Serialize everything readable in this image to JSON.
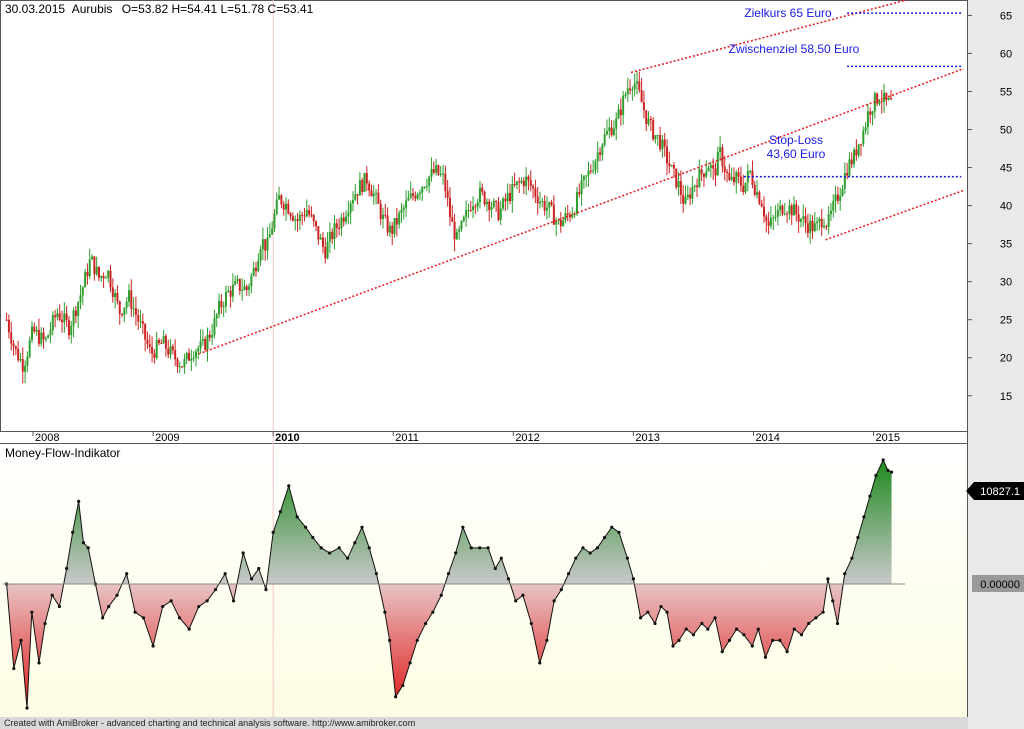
{
  "header": {
    "date": "30.03.2015",
    "symbol": "Aurubis",
    "ohlc": "O=53.82  H=54.41  L=51.78  C=53.41"
  },
  "indicator_title": "Money-Flow-Indikator",
  "footer": "Created with AmiBroker - advanced charting and technical analysis software. http://www.amibroker.com",
  "colors": {
    "up_candle": "#2e9e2e",
    "down_candle": "#cc2222",
    "channel": "#e8242a",
    "target_lines": "#1a1ae6",
    "annotation_text": "#1a1ae6",
    "mfi_positive": "#2e8b2e",
    "mfi_negative": "#dd2222"
  },
  "chart_data": [
    {
      "type": "candlestick",
      "title": "30.03.2015 Aurubis",
      "x_tick_labels": [
        "2008",
        "2009",
        "2010",
        "2011",
        "2012",
        "2013",
        "2014",
        "2015"
      ],
      "x_tick_years": [
        2008,
        2009,
        2010,
        2011,
        2012,
        2013,
        2014,
        2015
      ],
      "y_tick_labels": [
        "15",
        "20",
        "25",
        "30",
        "35",
        "40",
        "45",
        "50",
        "55",
        "60",
        "65"
      ],
      "ylim": [
        10.5,
        66.5
      ],
      "xlim": [
        2007.75,
        2015.77
      ],
      "last_bar": {
        "open": 53.82,
        "high": 54.41,
        "low": 51.78,
        "close": 53.41
      },
      "price_path": [
        [
          2007.78,
          25.0
        ],
        [
          2007.85,
          21.0
        ],
        [
          2007.92,
          19.0
        ],
        [
          2008.0,
          23.5
        ],
        [
          2008.1,
          22.0
        ],
        [
          2008.2,
          26.0
        ],
        [
          2008.3,
          24.0
        ],
        [
          2008.4,
          28.5
        ],
        [
          2008.48,
          33.0
        ],
        [
          2008.55,
          30.5
        ],
        [
          2008.62,
          31.5
        ],
        [
          2008.72,
          26.0
        ],
        [
          2008.8,
          28.0
        ],
        [
          2008.9,
          24.0
        ],
        [
          2008.98,
          20.5
        ],
        [
          2009.08,
          22.0
        ],
        [
          2009.15,
          20.5
        ],
        [
          2009.25,
          19.0
        ],
        [
          2009.33,
          21.0
        ],
        [
          2009.42,
          21.5
        ],
        [
          2009.5,
          24.0
        ],
        [
          2009.55,
          26.5
        ],
        [
          2009.62,
          28.5
        ],
        [
          2009.7,
          29.5
        ],
        [
          2009.78,
          29.0
        ],
        [
          2009.85,
          32.0
        ],
        [
          2009.9,
          35.5
        ],
        [
          2009.95,
          34.5
        ],
        [
          2010.0,
          38.0
        ],
        [
          2010.05,
          41.0
        ],
        [
          2010.12,
          40.0
        ],
        [
          2010.2,
          38.0
        ],
        [
          2010.28,
          39.5
        ],
        [
          2010.35,
          37.0
        ],
        [
          2010.43,
          34.0
        ],
        [
          2010.5,
          36.5
        ],
        [
          2010.58,
          38.5
        ],
        [
          2010.65,
          41.0
        ],
        [
          2010.72,
          42.5
        ],
        [
          2010.78,
          43.5
        ],
        [
          2010.85,
          41.0
        ],
        [
          2010.92,
          38.0
        ],
        [
          2010.98,
          36.5
        ],
        [
          2011.05,
          38.5
        ],
        [
          2011.12,
          40.5
        ],
        [
          2011.2,
          42.0
        ],
        [
          2011.28,
          43.5
        ],
        [
          2011.35,
          44.5
        ],
        [
          2011.42,
          43.5
        ],
        [
          2011.48,
          38.0
        ],
        [
          2011.53,
          35.5
        ],
        [
          2011.58,
          37.5
        ],
        [
          2011.65,
          40.5
        ],
        [
          2011.72,
          41.5
        ],
        [
          2011.8,
          40.5
        ],
        [
          2011.88,
          39.0
        ],
        [
          2011.95,
          41.0
        ],
        [
          2012.02,
          42.5
        ],
        [
          2012.1,
          43.5
        ],
        [
          2012.17,
          42.0
        ],
        [
          2012.23,
          40.5
        ],
        [
          2012.3,
          39.5
        ],
        [
          2012.38,
          37.5
        ],
        [
          2012.44,
          38.5
        ],
        [
          2012.5,
          39.5
        ],
        [
          2012.56,
          42.0
        ],
        [
          2012.62,
          44.0
        ],
        [
          2012.68,
          46.0
        ],
        [
          2012.74,
          48.5
        ],
        [
          2012.8,
          50.0
        ],
        [
          2012.86,
          51.0
        ],
        [
          2012.9,
          53.0
        ],
        [
          2012.95,
          55.5
        ],
        [
          2013.0,
          56.5
        ],
        [
          2013.04,
          55.0
        ],
        [
          2013.08,
          53.0
        ],
        [
          2013.12,
          51.0
        ],
        [
          2013.17,
          49.5
        ],
        [
          2013.22,
          48.5
        ],
        [
          2013.27,
          46.5
        ],
        [
          2013.32,
          44.5
        ],
        [
          2013.38,
          42.5
        ],
        [
          2013.43,
          40.0
        ],
        [
          2013.48,
          42.0
        ],
        [
          2013.53,
          43.5
        ],
        [
          2013.58,
          44.5
        ],
        [
          2013.63,
          45.5
        ],
        [
          2013.67,
          44.0
        ],
        [
          2013.72,
          47.0
        ],
        [
          2013.76,
          45.0
        ],
        [
          2013.8,
          43.0
        ],
        [
          2013.86,
          43.5
        ],
        [
          2013.92,
          42.5
        ],
        [
          2013.97,
          44.5
        ],
        [
          2014.02,
          42.0
        ],
        [
          2014.07,
          40.5
        ],
        [
          2014.12,
          37.0
        ],
        [
          2014.18,
          38.5
        ],
        [
          2014.25,
          40.0
        ],
        [
          2014.32,
          39.5
        ],
        [
          2014.38,
          38.5
        ],
        [
          2014.45,
          37.5
        ],
        [
          2014.52,
          37.0
        ],
        [
          2014.58,
          38.5
        ],
        [
          2014.62,
          37.5
        ],
        [
          2014.66,
          39.5
        ],
        [
          2014.72,
          42.0
        ],
        [
          2014.78,
          45.0
        ],
        [
          2014.84,
          46.5
        ],
        [
          2014.88,
          48.5
        ],
        [
          2014.92,
          50.0
        ],
        [
          2014.96,
          52.5
        ],
        [
          2015.0,
          53.5
        ],
        [
          2015.05,
          54.5
        ],
        [
          2015.1,
          53.5
        ],
        [
          2015.15,
          53.41
        ]
      ],
      "channel_lines": [
        {
          "from": [
            2009.38,
            20.5
          ],
          "to": [
            2015.75,
            58.0
          ]
        },
        {
          "from": [
            2012.98,
            57.5
          ],
          "to": [
            2015.75,
            69.0
          ]
        },
        {
          "from": [
            2014.6,
            35.5
          ],
          "to": [
            2015.75,
            42.0
          ]
        }
      ],
      "horizontal_levels": [
        {
          "label": "Zielkurs 65 Euro",
          "value": 65.3,
          "from": 2014.78,
          "to": 2015.73
        },
        {
          "label": "Zwischenziel 58,50 Euro",
          "value": 58.3,
          "from": 2014.78,
          "to": 2015.73
        },
        {
          "label": "Stop-Loss\n43,60 Euro",
          "value": 43.8,
          "from": 2013.92,
          "to": 2015.73
        }
      ]
    },
    {
      "type": "area",
      "title": "Money-Flow-Indikator",
      "last_value_label": "10827.1",
      "zero_label": "0.00000",
      "ylim": [
        -13000,
        13500
      ],
      "xlim": [
        2007.75,
        2015.77
      ],
      "series": [
        {
          "x": [
            2007.78,
            2007.84,
            2007.9,
            2007.95,
            2007.99,
            2008.05,
            2008.1,
            2008.16,
            2008.22,
            2008.28,
            2008.33,
            2008.38,
            2008.42,
            2008.46,
            2008.52,
            2008.58,
            2008.63,
            2008.7,
            2008.78,
            2008.85,
            2008.92,
            2009.0,
            2009.08,
            2009.15,
            2009.22,
            2009.3,
            2009.38,
            2009.45,
            2009.52,
            2009.6,
            2009.67,
            2009.75,
            2009.82,
            2009.88,
            2009.94,
            2010.0,
            2010.06,
            2010.13,
            2010.2,
            2010.27,
            2010.33,
            2010.4,
            2010.47,
            2010.55,
            2010.62,
            2010.68,
            2010.74,
            2010.8,
            2010.86,
            2010.93,
            2010.97,
            2011.02,
            2011.08,
            2011.14,
            2011.2,
            2011.27,
            2011.33,
            2011.4,
            2011.46,
            2011.52,
            2011.58,
            2011.65,
            2011.72,
            2011.79,
            2011.85,
            2011.9,
            2011.96,
            2012.02,
            2012.08,
            2012.15,
            2012.22,
            2012.28,
            2012.34,
            2012.4,
            2012.46,
            2012.52,
            2012.58,
            2012.64,
            2012.7,
            2012.76,
            2012.82,
            2012.88,
            2012.95,
            2013.0,
            2013.06,
            2013.12,
            2013.18,
            2013.23,
            2013.28,
            2013.33,
            2013.38,
            2013.44,
            2013.5,
            2013.57,
            2013.62,
            2013.68,
            2013.74,
            2013.8,
            2013.86,
            2013.92,
            2013.99,
            2014.04,
            2014.1,
            2014.16,
            2014.22,
            2014.28,
            2014.34,
            2014.4,
            2014.46,
            2014.52,
            2014.58,
            2014.62,
            2014.66,
            2014.7,
            2014.76,
            2014.82,
            2014.87,
            2014.92,
            2014.97,
            2015.02,
            2015.08,
            2015.12,
            2015.15
          ],
          "values": [
            0,
            -7500,
            -5000,
            -11000,
            -2500,
            -7000,
            -3500,
            -1000,
            -2000,
            1500,
            5000,
            8000,
            4000,
            3500,
            0,
            -3000,
            -2000,
            -1000,
            1000,
            -2500,
            -3000,
            -5500,
            -2000,
            -1500,
            -3000,
            -4000,
            -2000,
            -1500,
            -500,
            1000,
            -1500,
            3000,
            500,
            1500,
            -500,
            5000,
            7000,
            9500,
            6500,
            5500,
            4500,
            3500,
            3000,
            3500,
            2500,
            4000,
            5500,
            3500,
            1000,
            -2500,
            -5000,
            -10000,
            -9000,
            -7000,
            -5000,
            -3500,
            -2500,
            -1000,
            1000,
            3000,
            5500,
            3500,
            3500,
            3500,
            1500,
            2500,
            500,
            -1500,
            -1000,
            -3500,
            -7000,
            -5000,
            -1500,
            -500,
            1000,
            2500,
            3500,
            3000,
            3500,
            4500,
            5500,
            5000,
            2500,
            500,
            -3000,
            -2500,
            -3500,
            -2000,
            -2500,
            -5500,
            -5000,
            -4000,
            -4500,
            -3500,
            -4000,
            -3000,
            -6000,
            -5000,
            -4000,
            -4500,
            -5500,
            -4000,
            -6500,
            -5000,
            -5000,
            -6000,
            -4000,
            -4500,
            -3500,
            -3000,
            -2500,
            500,
            -1500,
            -3500,
            1000,
            2500,
            4500,
            6500,
            8500,
            10500,
            12000,
            11000,
            10827.1
          ]
        }
      ]
    }
  ]
}
